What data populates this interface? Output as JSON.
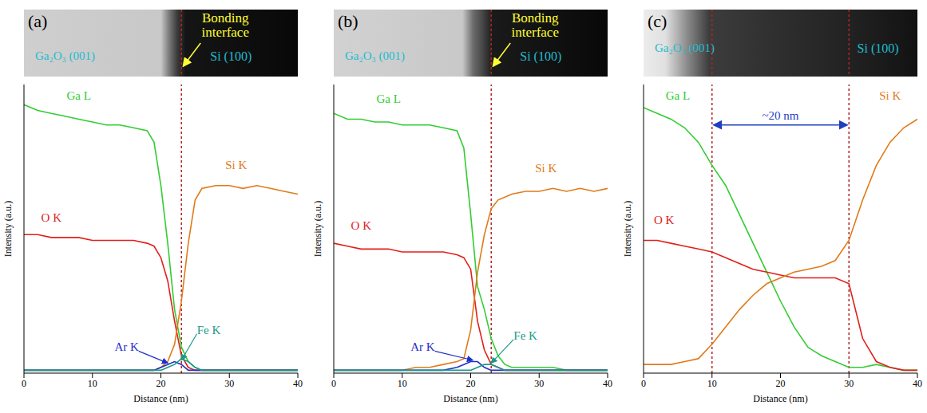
{
  "chart_data": [
    {
      "type": "line",
      "panel": "(a)",
      "image": {
        "left": "Ga₂O₃ (001)",
        "right": "Si (100)",
        "interface_label": "Bonding interface"
      },
      "x_label": "Distance (nm)",
      "y_label": "Intensity (a.u.)",
      "xlim": [
        0,
        40
      ],
      "xticks": [
        0,
        10,
        20,
        30,
        40
      ],
      "ylim": [
        0,
        100
      ],
      "tick_labels": "x",
      "vlines": [
        23
      ],
      "x": [
        0,
        2,
        4,
        6,
        8,
        10,
        12,
        14,
        16,
        18,
        19,
        20,
        21,
        22,
        23,
        24,
        25,
        26,
        28,
        30,
        32,
        34,
        36,
        38,
        40
      ],
      "series": [
        {
          "name": "Ga L",
          "color": "#33cc33",
          "values": [
            93,
            91,
            90,
            89,
            88,
            87,
            86,
            86,
            85,
            84,
            80,
            65,
            45,
            22,
            9,
            4,
            2,
            1,
            1,
            1,
            1,
            1,
            1,
            1,
            1
          ]
        },
        {
          "name": "O K",
          "color": "#e0201b",
          "values": [
            48,
            48,
            47,
            47,
            47,
            46,
            46,
            46,
            46,
            45,
            44,
            40,
            32,
            18,
            6,
            2,
            1,
            1,
            1,
            1,
            1,
            1,
            1,
            1,
            1
          ]
        },
        {
          "name": "Si K",
          "color": "#e07b1a",
          "values": [
            1,
            1,
            1,
            1,
            1,
            1,
            1,
            1,
            1,
            1,
            1,
            2,
            4,
            10,
            25,
            45,
            60,
            64,
            65,
            65,
            64,
            65,
            64,
            63,
            62
          ]
        },
        {
          "name": "Ar K",
          "color": "#1f2fc7",
          "values": [
            1,
            1,
            1,
            1,
            1,
            1,
            1,
            1,
            1,
            1,
            1,
            2,
            3,
            4,
            3,
            1,
            1,
            1,
            1,
            1,
            1,
            1,
            1,
            1,
            1
          ]
        },
        {
          "name": "Fe K",
          "color": "#1a9a8a",
          "values": [
            1,
            1,
            1,
            1,
            1,
            1,
            1,
            1,
            1,
            1,
            1,
            1,
            2,
            3,
            5,
            4,
            2,
            1,
            1,
            1,
            1,
            1,
            1,
            1,
            1
          ]
        }
      ]
    },
    {
      "type": "line",
      "panel": "(b)",
      "image": {
        "left": "Ga₂O₃ (001)",
        "right": "Si (100)",
        "interface_label": "Bonding interface"
      },
      "x_label": "Distance (nm)",
      "y_label": "Intensity (a.u.)",
      "xlim": [
        0,
        40
      ],
      "xticks": [
        0,
        10,
        20,
        30,
        40
      ],
      "ylim": [
        0,
        100
      ],
      "tick_labels": "x",
      "vlines": [
        23
      ],
      "x": [
        0,
        2,
        4,
        6,
        8,
        10,
        12,
        14,
        16,
        18,
        19,
        20,
        21,
        22,
        23,
        24,
        25,
        26,
        28,
        30,
        32,
        34,
        36,
        38,
        40
      ],
      "series": [
        {
          "name": "Ga L",
          "color": "#33cc33",
          "values": [
            90,
            88,
            88,
            87,
            87,
            86,
            86,
            86,
            85,
            84,
            78,
            55,
            30,
            22,
            12,
            6,
            3,
            2,
            2,
            2,
            2,
            1,
            1,
            1,
            1
          ]
        },
        {
          "name": "O K",
          "color": "#e0201b",
          "values": [
            45,
            44,
            43,
            43,
            43,
            42,
            42,
            42,
            42,
            41,
            40,
            36,
            18,
            8,
            3,
            2,
            1,
            1,
            1,
            1,
            1,
            1,
            1,
            1,
            1
          ]
        },
        {
          "name": "Si K",
          "color": "#e07b1a",
          "values": [
            1,
            1,
            1,
            1,
            1,
            1,
            2,
            2,
            3,
            4,
            5,
            15,
            35,
            48,
            57,
            60,
            61,
            62,
            63,
            63,
            64,
            63,
            64,
            63,
            64
          ]
        },
        {
          "name": "Ar K",
          "color": "#1f2fc7",
          "values": [
            1,
            1,
            1,
            1,
            1,
            1,
            1,
            1,
            1,
            2,
            3,
            4,
            4,
            2,
            1,
            1,
            1,
            1,
            1,
            1,
            1,
            1,
            1,
            1,
            1
          ]
        },
        {
          "name": "Fe K",
          "color": "#1a9a8a",
          "values": [
            1,
            1,
            1,
            1,
            1,
            1,
            1,
            1,
            1,
            1,
            1,
            1,
            2,
            3,
            3,
            2,
            1,
            1,
            1,
            1,
            1,
            1,
            1,
            1,
            1
          ]
        }
      ]
    },
    {
      "type": "line",
      "panel": "(c)",
      "image": {
        "left": "Ga₂O₃ (001)",
        "right": "Si (100)"
      },
      "x_label": "Distance (nm)",
      "y_label": "Intensity (a.u.)",
      "xlim": [
        0,
        40
      ],
      "xticks": [
        0,
        10,
        20,
        30,
        40
      ],
      "ylim": [
        0,
        100
      ],
      "tick_labels": "x",
      "vlines": [
        10,
        30
      ],
      "span": {
        "label": "~20 nm",
        "x": [
          10,
          30
        ]
      },
      "x": [
        0,
        2,
        4,
        6,
        8,
        10,
        12,
        14,
        16,
        18,
        20,
        22,
        24,
        26,
        28,
        30,
        32,
        34,
        36,
        38,
        40
      ],
      "series": [
        {
          "name": "Ga L",
          "color": "#33cc33",
          "values": [
            92,
            90,
            88,
            85,
            80,
            72,
            65,
            55,
            45,
            35,
            25,
            16,
            9,
            6,
            4,
            2,
            2,
            3,
            2,
            1,
            1
          ]
        },
        {
          "name": "O K",
          "color": "#e0201b",
          "values": [
            46,
            46,
            45,
            44,
            43,
            42,
            40,
            38,
            36,
            35,
            34,
            33,
            33,
            33,
            33,
            31,
            12,
            4,
            2,
            1,
            1
          ]
        },
        {
          "name": "Si K",
          "color": "#e07b1a",
          "values": [
            3,
            3,
            3,
            4,
            5,
            10,
            16,
            22,
            27,
            31,
            33,
            35,
            36,
            37,
            39,
            46,
            60,
            72,
            80,
            85,
            88
          ]
        }
      ]
    }
  ]
}
